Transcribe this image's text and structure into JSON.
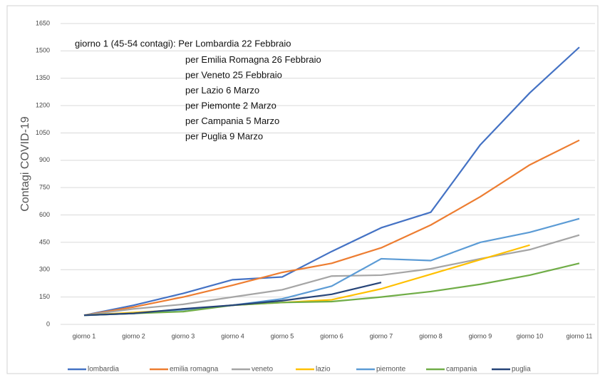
{
  "chart_data": {
    "type": "line",
    "y_label": "Contagi COVID-19",
    "annotations": [
      "giorno 1 (45-54 contagi): Per Lombardia 22 Febbraio",
      "per Emilia Romagna 26 Febbraio",
      "per Veneto 25 Febbraio",
      "per Lazio 6 Marzo",
      "per Piemonte 2 Marzo",
      "per Campania 5 Marzo",
      "per Puglia 9 Marzo"
    ],
    "categories": [
      "giorno 1",
      "giorno 2",
      "giorno 3",
      "giorno 4",
      "giorno 5",
      "giorno 6",
      "giorno 7",
      "giorno 8",
      "giorno 9",
      "giorno 10",
      "giorno 11"
    ],
    "series": [
      {
        "name": "lombardia",
        "color": "#4472c4",
        "values": [
          50,
          105,
          170,
          245,
          260,
          400,
          530,
          615,
          985,
          1270,
          1520
        ]
      },
      {
        "name": "emilia romagna",
        "color": "#ed7d31",
        "values": [
          50,
          95,
          150,
          215,
          285,
          335,
          420,
          545,
          700,
          875,
          1010
        ]
      },
      {
        "name": "veneto",
        "color": "#a5a5a5",
        "values": [
          50,
          85,
          110,
          150,
          190,
          265,
          270,
          305,
          360,
          410,
          490
        ]
      },
      {
        "name": "lazio",
        "color": "#ffc000",
        "values": [
          50,
          65,
          80,
          105,
          120,
          135,
          195,
          275,
          355,
          435,
          null
        ]
      },
      {
        "name": "piemonte",
        "color": "#5b9bd5",
        "values": [
          50,
          60,
          80,
          105,
          140,
          210,
          360,
          350,
          450,
          505,
          580
        ]
      },
      {
        "name": "campania",
        "color": "#70ad47",
        "values": [
          50,
          60,
          70,
          105,
          120,
          125,
          150,
          180,
          220,
          270,
          335
        ]
      },
      {
        "name": "puglia",
        "color": "#264478",
        "values": [
          50,
          60,
          85,
          105,
          130,
          165,
          230,
          null,
          null,
          null,
          null
        ]
      }
    ],
    "ylim": [
      0,
      1650
    ],
    "yticks": [
      0,
      150,
      300,
      450,
      600,
      750,
      900,
      1050,
      1200,
      1350,
      1500,
      1650
    ],
    "grid": true
  }
}
